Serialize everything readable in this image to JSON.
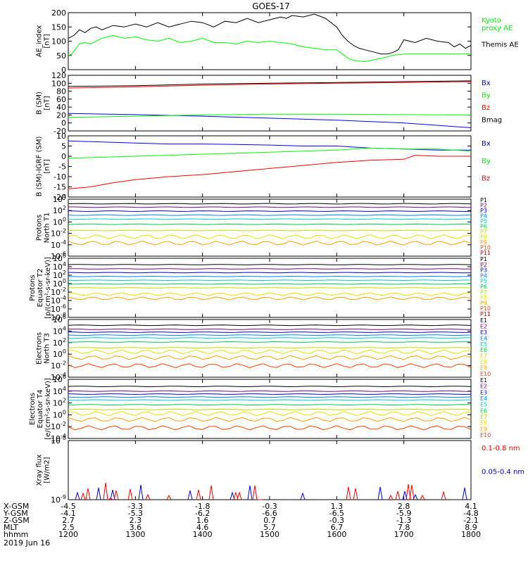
{
  "title": "GOES-17",
  "date_label": "2019 Jun 16",
  "colors": {
    "black": "#000000",
    "blue": "#0000ff",
    "green": "#00ff00",
    "red": "#ff0000",
    "P1": "#000000",
    "P2": "#7a007a",
    "P3": "#0000cc",
    "P4": "#0080ff",
    "P5": "#00cccc",
    "P6": "#00c850",
    "P7": "#b8e000",
    "P8": "#e6e000",
    "P9": "#ffa000",
    "P10": "#ff4000",
    "P11": "#cc0000"
  },
  "chart_data": [
    {
      "type": "line",
      "id": "ae",
      "ylabel": "AE_index\n[nT]",
      "ylim": [
        0,
        200
      ],
      "yticks": [
        "0",
        "50",
        "100",
        "150",
        "200"
      ],
      "legend": [
        {
          "name": "Kyoto\nproxy AE",
          "color": "#00ff00"
        },
        {
          "name": "Themis AE",
          "color": "#000000"
        }
      ],
      "series": [
        {
          "name": "Themis AE",
          "color": "#000000",
          "x": [
            1200,
            1205,
            1210,
            1215,
            1220,
            1225,
            1230,
            1240,
            1250,
            1300,
            1310,
            1320,
            1330,
            1340,
            1350,
            1400,
            1410,
            1420,
            1430,
            1440,
            1450,
            1500,
            1510,
            1515,
            1520,
            1530,
            1540,
            1550,
            1600,
            1605,
            1610,
            1615,
            1620,
            1625,
            1630,
            1635,
            1640,
            1645,
            1650,
            1655,
            1700,
            1710,
            1720,
            1730,
            1740,
            1745,
            1750,
            1755,
            1800
          ],
          "y": [
            110,
            120,
            140,
            130,
            145,
            150,
            140,
            155,
            150,
            160,
            150,
            165,
            150,
            160,
            170,
            165,
            150,
            170,
            165,
            180,
            165,
            175,
            185,
            180,
            190,
            185,
            195,
            180,
            150,
            120,
            100,
            85,
            75,
            70,
            65,
            60,
            55,
            55,
            60,
            70,
            105,
            95,
            110,
            100,
            95,
            80,
            90,
            75,
            85
          ]
        },
        {
          "name": "Kyoto proxy AE",
          "color": "#00ff00",
          "x": [
            1200,
            1203,
            1206,
            1210,
            1215,
            1220,
            1230,
            1240,
            1250,
            1300,
            1310,
            1320,
            1330,
            1340,
            1350,
            1400,
            1410,
            1420,
            1430,
            1440,
            1450,
            1500,
            1510,
            1520,
            1530,
            1540,
            1550,
            1600,
            1605,
            1610,
            1615,
            1620,
            1625,
            1630,
            1640,
            1650,
            1700,
            1710,
            1720,
            1730,
            1740,
            1750,
            1800
          ],
          "y": [
            50,
            55,
            70,
            90,
            95,
            90,
            110,
            120,
            110,
            115,
            105,
            100,
            110,
            95,
            100,
            110,
            95,
            95,
            90,
            100,
            95,
            100,
            95,
            90,
            80,
            75,
            70,
            70,
            55,
            40,
            32,
            30,
            28,
            32,
            40,
            50,
            55,
            55,
            55,
            55,
            55,
            55,
            55
          ]
        }
      ]
    },
    {
      "type": "line",
      "id": "bsm",
      "ylabel": "B (SM)\n[nT]",
      "ylim": [
        -20,
        120
      ],
      "yticks": [
        "-20",
        "0",
        "20",
        "40",
        "60",
        "80",
        "100",
        "120"
      ],
      "legend": [
        {
          "name": "Bx",
          "color": "#0000ff"
        },
        {
          "name": "By",
          "color": "#00ff00"
        },
        {
          "name": "Bz",
          "color": "#ff0000"
        },
        {
          "name": "Bmag",
          "color": "#000000"
        }
      ],
      "series": [
        {
          "name": "Bmag",
          "color": "#000000",
          "x": [
            1200,
            1300,
            1400,
            1500,
            1600,
            1700,
            1800
          ],
          "y": [
            92,
            94,
            98,
            100,
            102,
            104,
            106
          ]
        },
        {
          "name": "Bz",
          "color": "#ff0000",
          "x": [
            1200,
            1300,
            1400,
            1500,
            1600,
            1700,
            1800
          ],
          "y": [
            88,
            91,
            95,
            98,
            100,
            102,
            104
          ]
        },
        {
          "name": "Bx",
          "color": "#0000ff",
          "x": [
            1200,
            1300,
            1400,
            1500,
            1600,
            1700,
            1800
          ],
          "y": [
            24,
            21,
            17,
            12,
            7,
            0,
            -12
          ]
        },
        {
          "name": "By",
          "color": "#00ff00",
          "x": [
            1200,
            1300,
            1400,
            1500,
            1600,
            1700,
            1800
          ],
          "y": [
            14,
            17,
            20,
            22,
            22,
            21,
            20
          ]
        }
      ]
    },
    {
      "type": "line",
      "id": "bdiff",
      "ylabel": "B (SM)-IGRF (SM)\n[nT]",
      "ylim": [
        -20,
        10
      ],
      "yticks": [
        "-20",
        "-15",
        "-10",
        "-5",
        "0",
        "5",
        "10"
      ],
      "legend": [
        {
          "name": "Bx",
          "color": "#0000ff"
        },
        {
          "name": "By",
          "color": "#00ff00"
        },
        {
          "name": "Bz",
          "color": "#ff0000"
        }
      ],
      "series": [
        {
          "name": "Bx",
          "color": "#0000ff",
          "x": [
            1200,
            1230,
            1300,
            1330,
            1400,
            1430,
            1500,
            1530,
            1600,
            1630,
            1700,
            1730,
            1800
          ],
          "y": [
            7.5,
            7,
            6.5,
            6,
            6,
            5.8,
            5.5,
            5,
            5,
            4,
            3.5,
            3,
            3
          ]
        },
        {
          "name": "By",
          "color": "#00ff00",
          "x": [
            1200,
            1230,
            1300,
            1330,
            1400,
            1430,
            1500,
            1530,
            1600,
            1630,
            1700,
            1730,
            1800
          ],
          "y": [
            -1,
            -0.5,
            0,
            0.5,
            1,
            1.5,
            2,
            2.5,
            3,
            4,
            3.5,
            3.5,
            2.5
          ]
        },
        {
          "name": "Bz",
          "color": "#ff0000",
          "x": [
            1200,
            1220,
            1240,
            1300,
            1330,
            1400,
            1430,
            1500,
            1530,
            1600,
            1630,
            1700,
            1710,
            1730,
            1800
          ],
          "y": [
            -16,
            -15,
            -13,
            -11.5,
            -10,
            -9,
            -7.5,
            -6,
            -4.5,
            -3,
            -2,
            -1.5,
            0.5,
            0,
            0
          ]
        }
      ]
    },
    {
      "type": "line",
      "id": "p_north",
      "ylabel": "Protons\nNorth T1",
      "yscale": "log",
      "ylim": [
        1e-06,
        10000.0
      ],
      "yticks": [
        "10^4",
        "10^2",
        "10^0",
        "10^-2",
        "10^-4",
        "10^-6"
      ],
      "legend": [
        "P1",
        "P2",
        "P3",
        "P4",
        "P5",
        "P6",
        "P7",
        "P8",
        "P9",
        "P10",
        "P11"
      ],
      "series": [
        {
          "name": "P1",
          "log10": 3.2
        },
        {
          "name": "P2",
          "log10": 2.6
        },
        {
          "name": "P3",
          "log10": 1.9
        },
        {
          "name": "P4",
          "log10": 1.2
        },
        {
          "name": "P5",
          "log10": 0.5
        },
        {
          "name": "P6",
          "log10": -0.4
        },
        {
          "name": "P7",
          "log10": -1.5
        },
        {
          "name": "P8",
          "log10": -2.6
        },
        {
          "name": "P9",
          "log10": -3.7
        }
      ]
    },
    {
      "type": "line",
      "id": "p_equator",
      "ylabel": "Protons\nEquator T2\n[p/(cm²-s-sr-keV)]",
      "yscale": "log",
      "ylim": [
        1e-08,
        1000000.0
      ],
      "yticks": [
        "10^6",
        "10^4",
        "10^2",
        "10^0",
        "10^-2",
        "10^-4",
        "10^-6",
        "10^-8"
      ],
      "legend": [
        "P1",
        "P2",
        "P3",
        "P4",
        "P5",
        "P6",
        "P7",
        "P8",
        "P9",
        "P10",
        "P11"
      ],
      "series": [
        {
          "name": "P1",
          "log10": 4.5
        },
        {
          "name": "P2",
          "log10": 3.5
        },
        {
          "name": "P3",
          "log10": 2.6
        },
        {
          "name": "P4",
          "log10": 1.7
        },
        {
          "name": "P5",
          "log10": 0.8
        },
        {
          "name": "P6",
          "log10": -0.1
        },
        {
          "name": "P7",
          "log10": -1.0
        },
        {
          "name": "P8",
          "log10": -2.5
        },
        {
          "name": "P9",
          "log10": -3.5
        }
      ]
    },
    {
      "type": "line",
      "id": "e_north",
      "ylabel": "Electrons\nNorth T3",
      "yscale": "log",
      "ylim": [
        0.0001,
        1000000.0
      ],
      "yticks": [
        "10^6",
        "10^4",
        "10^2",
        "10^0",
        "10^-2",
        "10^-4"
      ],
      "legend": [
        "E1",
        "E2",
        "E3",
        "E4",
        "E5",
        "E6",
        "E7",
        "E8",
        "E9",
        "E10"
      ],
      "series": [
        {
          "name": "E1",
          "log10": 5.0
        },
        {
          "name": "E2",
          "log10": 4.3
        },
        {
          "name": "E3",
          "log10": 3.8
        },
        {
          "name": "E4",
          "log10": 3.3
        },
        {
          "name": "E5",
          "log10": 2.8
        },
        {
          "name": "E6",
          "log10": 2.1
        },
        {
          "name": "E7",
          "log10": 1.1
        },
        {
          "name": "E8",
          "log10": 0.4
        },
        {
          "name": "E9",
          "log10": -0.6
        },
        {
          "name": "E10",
          "log10": -2.0
        }
      ]
    },
    {
      "type": "line",
      "id": "e_equator",
      "ylabel": "Electrons\nEquator T4\n[e/(cm²-s-sr-keV)]",
      "yscale": "log",
      "ylim": [
        0.0001,
        1000000.0
      ],
      "yticks": [
        "10^6",
        "10^4",
        "10^2",
        "10^0",
        "10^-2",
        "10^-4"
      ],
      "legend": [
        "E1",
        "E2",
        "E3",
        "E4",
        "E5",
        "E6",
        "E7",
        "E8",
        "E9",
        "E10"
      ],
      "series": [
        {
          "name": "E1",
          "log10": 4.8
        },
        {
          "name": "E2",
          "log10": 4.0
        },
        {
          "name": "E3",
          "log10": 3.5
        },
        {
          "name": "E4",
          "log10": 3.0
        },
        {
          "name": "E5",
          "log10": 2.5
        },
        {
          "name": "E6",
          "log10": 1.7
        },
        {
          "name": "E7",
          "log10": 0.9
        },
        {
          "name": "E8",
          "log10": 0.2
        },
        {
          "name": "E9",
          "log10": -0.8
        },
        {
          "name": "E10",
          "log10": -2.2
        }
      ]
    },
    {
      "type": "line",
      "id": "xray",
      "ylabel": "Xray flux\n[W/m2]",
      "yscale": "log",
      "ylim": [
        1e-09,
        1e-08
      ],
      "yticks": [
        "10^-8",
        "10^-9"
      ],
      "legend": [
        {
          "name": "0.1-0.8 nm",
          "color": "#ff0000"
        },
        {
          "name": "0.05-0.4 nm",
          "color": "#0000ff"
        }
      ]
    }
  ],
  "xaxis": {
    "ticks": [
      "1200",
      "1300",
      "1400",
      "1500",
      "1600",
      "1700",
      "1800"
    ],
    "rows": [
      {
        "label": "X-GSM",
        "values": [
          "-4.5",
          "-3.3",
          "-1.8",
          "-0.3",
          "1.3",
          "2.8",
          "4.1"
        ]
      },
      {
        "label": "Y-GSM",
        "values": [
          "-4.1",
          "-5.3",
          "-6.2",
          "-6.6",
          "-6.5",
          "-5.9",
          "-4.8"
        ]
      },
      {
        "label": "Z-GSM",
        "values": [
          "2.7",
          "2.3",
          "1.6",
          "0.7",
          "-0.3",
          "-1.3",
          "-2.1"
        ]
      },
      {
        "label": "MLT",
        "values": [
          "2.5",
          "3.6",
          "4.6",
          "5.7",
          "6.7",
          "7.8",
          "8.9"
        ]
      },
      {
        "label": "hhmm",
        "values": [
          "1200",
          "1300",
          "1400",
          "1500",
          "1600",
          "1700",
          "1800"
        ]
      }
    ]
  }
}
